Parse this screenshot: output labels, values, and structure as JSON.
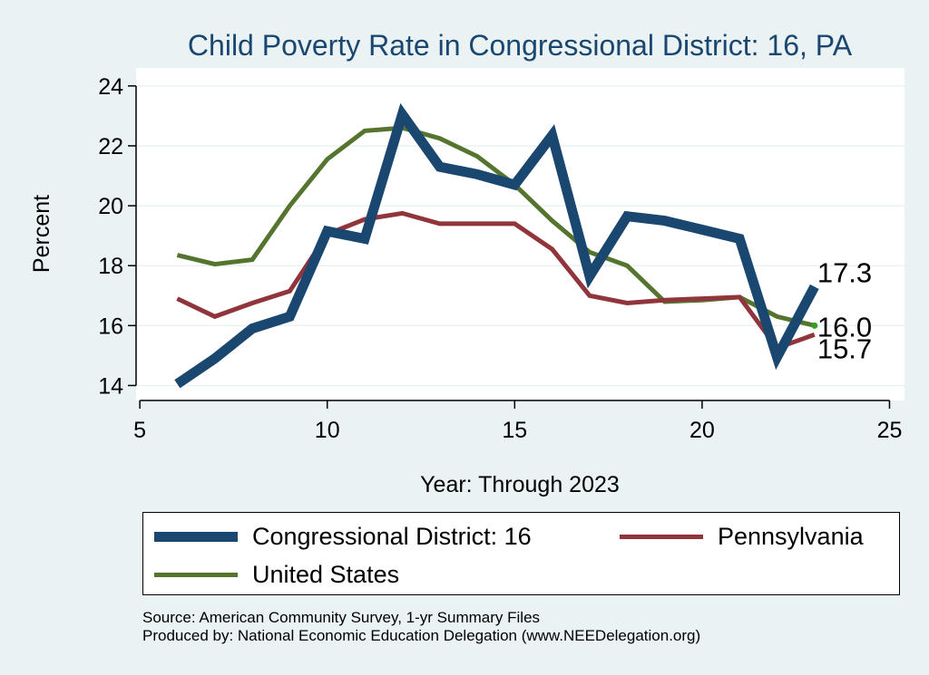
{
  "chart_data": {
    "type": "line",
    "title": "Child Poverty Rate in Congressional District:  16, PA",
    "xlabel": "Year: Through 2023",
    "ylabel": "Percent",
    "xlim": [
      4.9,
      25.4
    ],
    "ylim": [
      13.5,
      24.6
    ],
    "xticks": [
      5,
      10,
      15,
      20,
      25
    ],
    "yticks": [
      14,
      16,
      18,
      20,
      22,
      24
    ],
    "grid": true,
    "legend_position": "bottom",
    "x": [
      6,
      7,
      8,
      9,
      10,
      11,
      12,
      13,
      14,
      15,
      16,
      17,
      18,
      19,
      20,
      21,
      22,
      23
    ],
    "series": [
      {
        "name": "Congressional District:  16",
        "color": "#1a476f",
        "values": [
          14.05,
          14.9,
          15.9,
          16.3,
          19.15,
          18.9,
          23.05,
          21.3,
          21.05,
          20.7,
          22.35,
          17.65,
          19.65,
          19.5,
          19.2,
          18.9,
          14.95,
          17.3
        ]
      },
      {
        "name": "Pennsylvania",
        "color": "#90353b",
        "values": [
          16.9,
          16.3,
          16.75,
          17.15,
          19.05,
          19.55,
          19.75,
          19.4,
          19.4,
          19.4,
          18.55,
          17.0,
          16.75,
          16.85,
          16.9,
          16.95,
          15.25,
          15.7
        ]
      },
      {
        "name": "United States",
        "color": "#55752f",
        "values": [
          18.35,
          18.05,
          18.2,
          20.0,
          21.55,
          22.5,
          22.6,
          22.25,
          21.65,
          20.7,
          19.5,
          18.45,
          18.0,
          16.8,
          16.85,
          16.95,
          16.3,
          16.0
        ]
      }
    ],
    "end_labels": [
      {
        "series": "Congressional District:  16",
        "text": "17.3"
      },
      {
        "series": "United States",
        "text": "16.0"
      },
      {
        "series": "Pennsylvania",
        "text": "15.7"
      }
    ]
  },
  "source_lines": [
    "Source: American Community Survey, 1-yr Summary Files",
    "Produced by: National Economic Education Delegation (www.NEEDelegation.org)"
  ]
}
